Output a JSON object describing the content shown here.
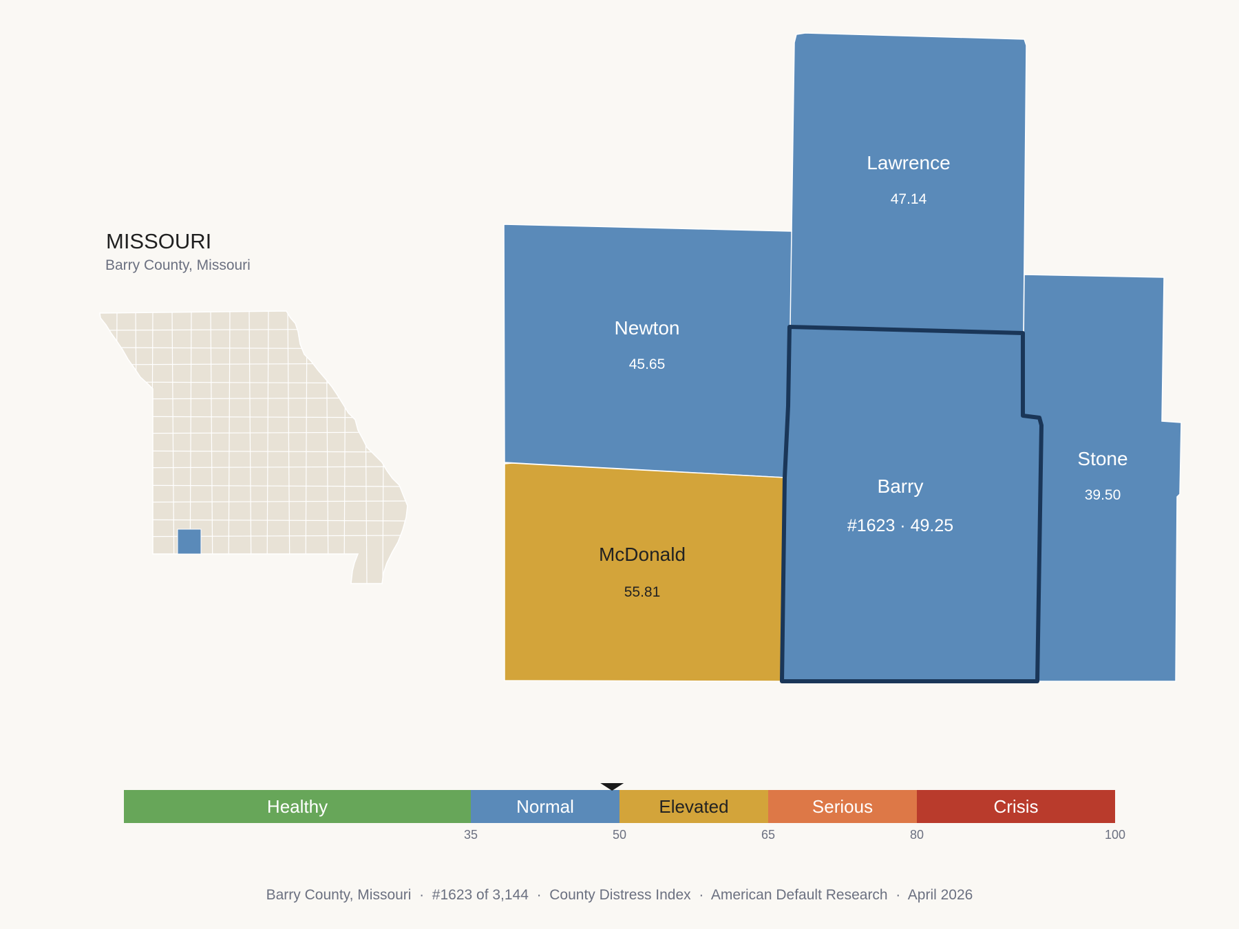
{
  "header": {
    "state": "MISSOURI",
    "subtitle": "Barry County, Missouri"
  },
  "colors": {
    "healthy": "#67a659",
    "normal": "#5a8ab9",
    "elevated": "#d3a43a",
    "serious": "#dd7847",
    "crisis": "#b93b2c",
    "state_fill": "#e8e2d6",
    "highlight_border": "#1a3658",
    "background": "#faf8f4"
  },
  "counties": [
    {
      "name": "Lawrence",
      "value": "47.14",
      "category": "normal"
    },
    {
      "name": "Newton",
      "value": "45.65",
      "category": "normal"
    },
    {
      "name": "Stone",
      "value": "39.50",
      "category": "normal"
    },
    {
      "name": "McDonald",
      "value": "55.81",
      "category": "elevated"
    },
    {
      "name": "Barry",
      "value": "#1623 · 49.25",
      "category": "normal",
      "highlighted": true
    }
  ],
  "scale": {
    "min": 0,
    "max": 100,
    "marker_value": 49.25,
    "bands": [
      {
        "label": "Healthy",
        "from": 0,
        "to": 35,
        "color": "#67a659",
        "text_color": "#ffffff"
      },
      {
        "label": "Normal",
        "from": 35,
        "to": 50,
        "color": "#5a8ab9",
        "text_color": "#ffffff"
      },
      {
        "label": "Elevated",
        "from": 50,
        "to": 65,
        "color": "#d3a43a",
        "text_color": "#222222"
      },
      {
        "label": "Serious",
        "from": 65,
        "to": 80,
        "color": "#dd7847",
        "text_color": "#ffffff"
      },
      {
        "label": "Crisis",
        "from": 80,
        "to": 100,
        "color": "#b93b2c",
        "text_color": "#ffffff"
      }
    ],
    "ticks": [
      "35",
      "50",
      "65",
      "80",
      "100"
    ]
  },
  "footer": "Barry County, Missouri  ·  #1623 of 3,144  ·  County Distress Index  ·  American Default Research  ·  April 2026"
}
